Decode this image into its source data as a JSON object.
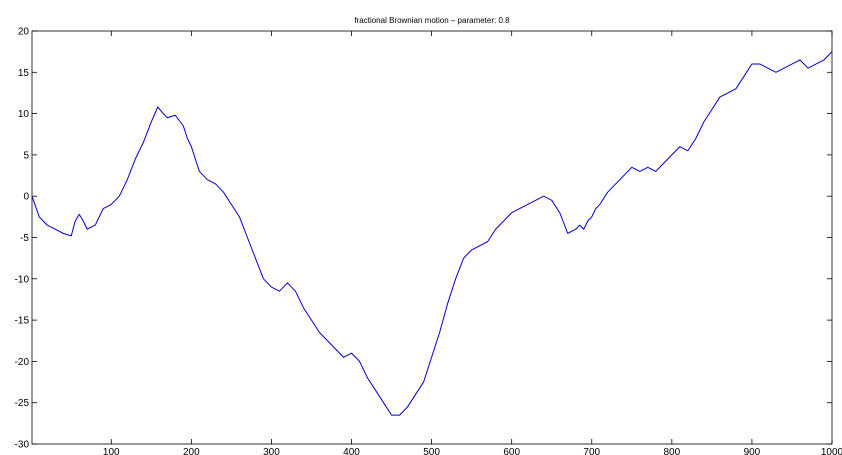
{
  "chart_data": {
    "type": "line",
    "title": "fractional Brownian motion – parameter: 0.8",
    "xlabel": "",
    "ylabel": "",
    "xlim": [
      1,
      1000
    ],
    "ylim": [
      -30,
      20
    ],
    "grid": false,
    "x_ticks": [
      100,
      200,
      300,
      400,
      500,
      600,
      700,
      800,
      900,
      1000
    ],
    "y_ticks": [
      -30,
      -25,
      -20,
      -15,
      -10,
      -5,
      0,
      5,
      10,
      15,
      20
    ],
    "colors": {
      "series": "#0000cc",
      "axes": "#000000",
      "background": "#ffffff"
    },
    "series": [
      {
        "x": [
          1,
          10,
          20,
          30,
          40,
          50,
          55,
          60,
          65,
          70,
          80,
          90,
          100,
          110,
          120,
          130,
          140,
          150,
          158,
          165,
          170,
          180,
          190,
          195,
          200,
          210,
          220,
          230,
          240,
          250,
          260,
          270,
          280,
          290,
          300,
          310,
          320,
          330,
          340,
          350,
          360,
          370,
          380,
          390,
          400,
          410,
          420,
          430,
          440,
          450,
          460,
          470,
          480,
          490,
          500,
          510,
          520,
          530,
          540,
          550,
          560,
          570,
          580,
          590,
          600,
          610,
          620,
          630,
          640,
          650,
          660,
          670,
          680,
          685,
          690,
          695,
          700,
          705,
          710,
          720,
          730,
          740,
          750,
          760,
          770,
          780,
          790,
          800,
          810,
          820,
          830,
          840,
          850,
          860,
          870,
          880,
          890,
          900,
          910,
          920,
          930,
          940,
          950,
          960,
          970,
          980,
          990,
          1000
        ],
        "y": [
          0.0,
          -2.5,
          -3.5,
          -4.0,
          -4.5,
          -4.8,
          -3.0,
          -2.2,
          -3.0,
          -4.0,
          -3.5,
          -1.5,
          -1.0,
          0.0,
          2.0,
          4.5,
          6.5,
          9.0,
          10.8,
          10.0,
          9.5,
          9.8,
          8.5,
          7.0,
          6.0,
          3.0,
          2.0,
          1.5,
          0.5,
          -1.0,
          -2.5,
          -5.0,
          -7.5,
          -10.0,
          -11.0,
          -11.5,
          -10.5,
          -11.5,
          -13.5,
          -15.0,
          -16.5,
          -17.5,
          -18.5,
          -19.5,
          -19.0,
          -20.0,
          -22.0,
          -23.5,
          -25.0,
          -26.5,
          -26.5,
          -25.5,
          -24.0,
          -22.5,
          -19.5,
          -16.5,
          -13.0,
          -10.0,
          -7.5,
          -6.5,
          -6.0,
          -5.5,
          -4.0,
          -3.0,
          -2.0,
          -1.5,
          -1.0,
          -0.5,
          0.0,
          -0.5,
          -2.0,
          -4.5,
          -4.0,
          -3.5,
          -4.0,
          -3.0,
          -2.5,
          -1.5,
          -1.0,
          0.5,
          1.5,
          2.5,
          3.5,
          3.0,
          3.5,
          3.0,
          4.0,
          5.0,
          6.0,
          5.5,
          7.0,
          9.0,
          10.5,
          12.0,
          12.5,
          13.0,
          14.5,
          16.0,
          16.0,
          15.5,
          15.0,
          15.5,
          16.0,
          16.5,
          15.5,
          16.0,
          16.5,
          17.5
        ]
      }
    ]
  }
}
